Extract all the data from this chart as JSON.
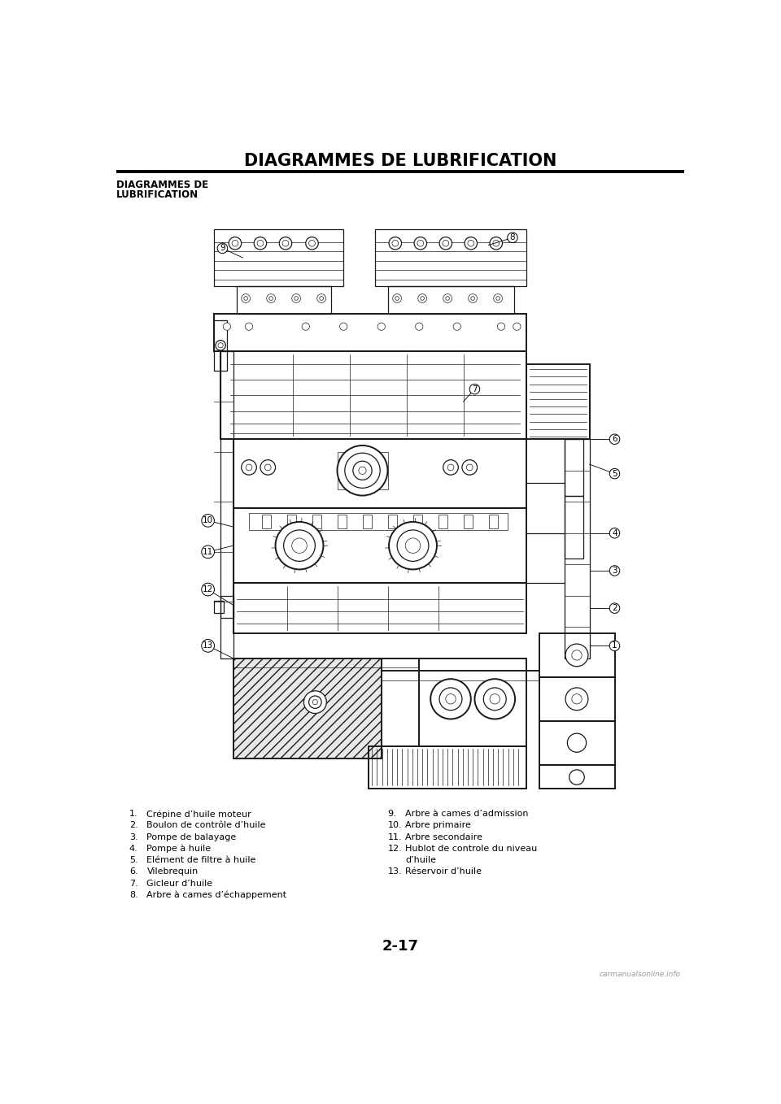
{
  "page_title": "DIAGRAMMES DE LUBRIFICATION",
  "section_title": "DIAGRAMMES DE\nLUBRIFICATION",
  "page_number": "2-17",
  "watermark": "carmanualsonline.info",
  "left_col": [
    [
      "1.",
      "Crépine d’huile moteur"
    ],
    [
      "2.",
      "Boulon de contrôle d’huile"
    ],
    [
      "3.",
      "Pompe de balayage"
    ],
    [
      "4.",
      "Pompe à huile"
    ],
    [
      "5.",
      "Elément de filtre à huile"
    ],
    [
      "6.",
      "Vilebrequin"
    ],
    [
      "7.",
      "Gicleur d’huile"
    ],
    [
      "8.",
      "Arbre à cames d’échappement"
    ]
  ],
  "right_col": [
    [
      "9.",
      "Arbre à cames d’admission"
    ],
    [
      "10.",
      "Arbre primaire"
    ],
    [
      "11.",
      "Arbre secondaire"
    ],
    [
      "12.",
      "Hublot de controle du niveau"
    ],
    [
      "",
      "d’huile"
    ],
    [
      "13.",
      "Réservoir d’huile"
    ]
  ],
  "bg_color": "#ffffff",
  "text_color": "#000000",
  "title_fontsize": 15,
  "section_fontsize": 8.5,
  "body_fontsize": 8.0,
  "page_num_fontsize": 13
}
